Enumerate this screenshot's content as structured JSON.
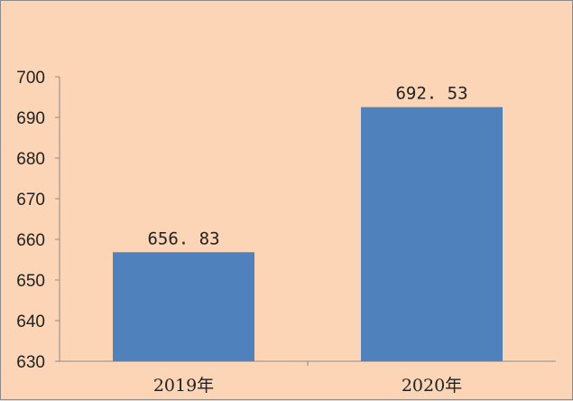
{
  "chart_data": {
    "type": "bar",
    "categories": [
      "2019年",
      "2020年"
    ],
    "values": [
      656.83,
      692.53
    ],
    "data_labels": [
      "656. 83",
      "692. 53"
    ],
    "ylim": [
      630,
      700
    ],
    "yticks": [
      "630",
      "640",
      "650",
      "660",
      "670",
      "680",
      "690",
      "700"
    ],
    "bar_color": "#4f81bd",
    "background_color": "#fbd5b5",
    "grid": false,
    "legend": "none"
  }
}
